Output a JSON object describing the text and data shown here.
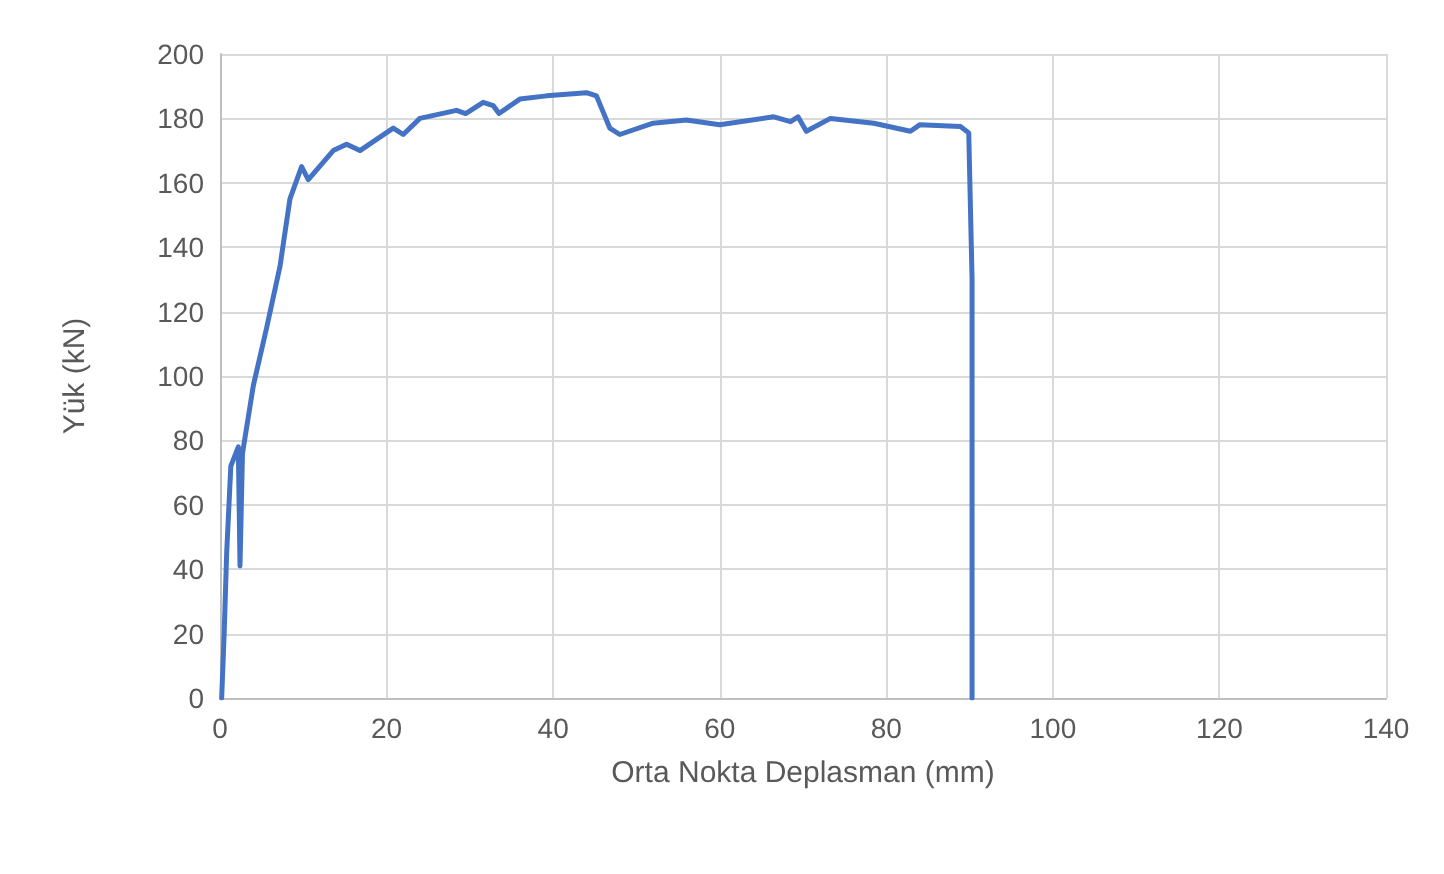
{
  "chart_data": {
    "type": "line",
    "xlabel": "Orta Nokta Deplasman (mm)",
    "ylabel": "Yük (kN)",
    "xlim": [
      0,
      140
    ],
    "xticks": [
      0,
      20,
      40,
      60,
      80,
      100,
      120,
      140
    ],
    "ylim": [
      0,
      200
    ],
    "yticks": [
      0,
      20,
      40,
      60,
      80,
      100,
      120,
      140,
      160,
      180,
      200
    ],
    "grid": true,
    "marker": "none",
    "line_style": "solid",
    "series": [
      {
        "color": "#4472c4",
        "x": [
          0.2,
          0.5,
          0.8,
          1.3,
          2.2,
          2.4,
          2.7,
          4,
          5.6,
          7.2,
          8.4,
          9.8,
          10.6,
          13.6,
          15.2,
          16.8,
          20.8,
          22,
          24,
          28.4,
          29.5,
          31.6,
          32.8,
          33.5,
          36,
          39.2,
          44,
          45.2,
          46.8,
          48,
          52,
          56,
          60,
          66.5,
          68.5,
          69.4,
          70.4,
          73.3,
          78.5,
          82.9,
          84,
          88.9,
          89.9,
          90.3,
          90.3
        ],
        "values": [
          0,
          20,
          45,
          72,
          78,
          41,
          76,
          97,
          115,
          134,
          155,
          165,
          161,
          170,
          172,
          170,
          177,
          175,
          180,
          182.5,
          181.5,
          185,
          184,
          181.5,
          186,
          187,
          188,
          187,
          177,
          175,
          178.5,
          179.5,
          178,
          180.5,
          179,
          180.5,
          176,
          180,
          178.5,
          176,
          178,
          177.5,
          175.5,
          130,
          0
        ]
      }
    ]
  }
}
